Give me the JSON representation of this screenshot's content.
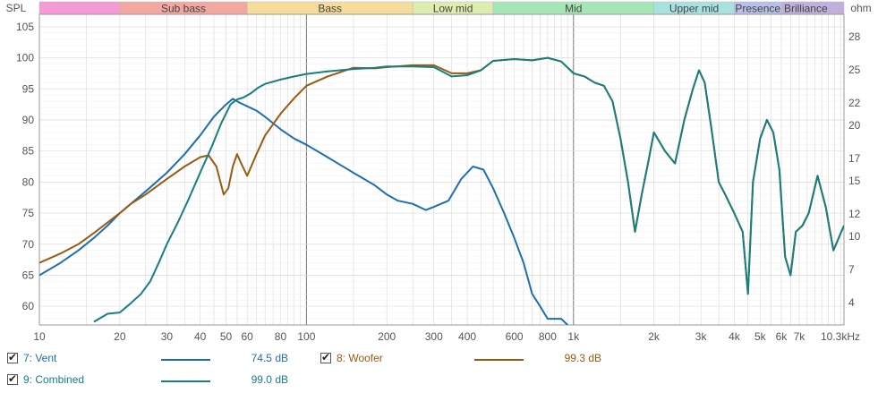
{
  "chart_data": {
    "type": "line",
    "x_scale": "log",
    "xlim": [
      10,
      10300
    ],
    "ylim": [
      57,
      107
    ],
    "y2lim": [
      2,
      30
    ],
    "y_label": "SPL",
    "y2_label": "ohm",
    "x_ticks": [
      {
        "value": 10,
        "label": "10"
      },
      {
        "value": 20,
        "label": "20"
      },
      {
        "value": 30,
        "label": "30"
      },
      {
        "value": 40,
        "label": "40"
      },
      {
        "value": 50,
        "label": "50"
      },
      {
        "value": 60,
        "label": "60"
      },
      {
        "value": 80,
        "label": "80"
      },
      {
        "value": 100,
        "label": "100"
      },
      {
        "value": 200,
        "label": "200"
      },
      {
        "value": 300,
        "label": "300"
      },
      {
        "value": 400,
        "label": "400"
      },
      {
        "value": 600,
        "label": "600"
      },
      {
        "value": 800,
        "label": "800"
      },
      {
        "value": 1000,
        "label": "1k"
      },
      {
        "value": 2000,
        "label": "2k"
      },
      {
        "value": 3000,
        "label": "3k"
      },
      {
        "value": 4000,
        "label": "4k"
      },
      {
        "value": 5000,
        "label": "5k"
      },
      {
        "value": 6000,
        "label": "6k"
      },
      {
        "value": 7000,
        "label": "7k"
      },
      {
        "value": 10300,
        "label": "10.3kHz"
      }
    ],
    "y_ticks": [
      60,
      65,
      70,
      75,
      80,
      85,
      90,
      95,
      100,
      105
    ],
    "y2_ticks": [
      {
        "value": 4,
        "label": "4"
      },
      {
        "value": 7,
        "label": "7"
      },
      {
        "value": 10,
        "label": "10"
      },
      {
        "value": 12,
        "label": "12"
      },
      {
        "value": 15,
        "label": "15"
      },
      {
        "value": 17,
        "label": "17"
      },
      {
        "value": 20,
        "label": "20"
      },
      {
        "value": 22,
        "label": "22"
      },
      {
        "value": 25,
        "label": "25"
      },
      {
        "value": 28,
        "label": "28"
      }
    ],
    "bands": [
      {
        "name": "",
        "from": 10,
        "to": 20,
        "color": "#f49ad4"
      },
      {
        "name": "Sub bass",
        "from": 20,
        "to": 60,
        "color": "#f2a8a0"
      },
      {
        "name": "Bass",
        "from": 60,
        "to": 250,
        "color": "#f6dc9a"
      },
      {
        "name": "Low mid",
        "from": 250,
        "to": 500,
        "color": "#dcedae"
      },
      {
        "name": "Mid",
        "from": 500,
        "to": 2000,
        "color": "#a6e6b6"
      },
      {
        "name": "Upper mid",
        "from": 2000,
        "to": 4000,
        "color": "#a7e2df"
      },
      {
        "name": "Presence",
        "from": 4000,
        "to": 6000,
        "color": "#b8c0e8"
      },
      {
        "name": "Brilliance",
        "from": 6000,
        "to": 10300,
        "color": "#c2b0dc"
      }
    ],
    "series": [
      {
        "name": "7: Vent",
        "value_label": "74.5 dB",
        "color": "#1f6fb0",
        "points": [
          [
            10,
            65
          ],
          [
            12,
            67
          ],
          [
            14,
            69
          ],
          [
            16,
            71
          ],
          [
            18,
            73
          ],
          [
            20,
            75
          ],
          [
            25,
            78.5
          ],
          [
            30,
            81.5
          ],
          [
            35,
            84.5
          ],
          [
            40,
            87.5
          ],
          [
            45,
            90.5
          ],
          [
            50,
            92.5
          ],
          [
            53,
            93.4
          ],
          [
            56,
            92.8
          ],
          [
            60,
            92.2
          ],
          [
            65,
            91.5
          ],
          [
            70,
            90.5
          ],
          [
            80,
            88.5
          ],
          [
            90,
            87
          ],
          [
            100,
            86
          ],
          [
            120,
            84
          ],
          [
            150,
            81.5
          ],
          [
            180,
            79.5
          ],
          [
            200,
            78
          ],
          [
            220,
            77
          ],
          [
            250,
            76.5
          ],
          [
            280,
            75.5
          ],
          [
            300,
            76
          ],
          [
            340,
            77
          ],
          [
            380,
            80.5
          ],
          [
            420,
            82.5
          ],
          [
            460,
            82
          ],
          [
            500,
            79
          ],
          [
            550,
            75
          ],
          [
            600,
            71
          ],
          [
            650,
            67
          ],
          [
            700,
            62
          ],
          [
            750,
            60
          ],
          [
            800,
            58
          ],
          [
            900,
            58
          ],
          [
            950,
            57
          ]
        ]
      },
      {
        "name": "8: Woofer",
        "value_label": "99.3 dB",
        "color": "#9a5a10",
        "points": [
          [
            10,
            67
          ],
          [
            12,
            68.5
          ],
          [
            14,
            70
          ],
          [
            16,
            71.8
          ],
          [
            18,
            73.5
          ],
          [
            20,
            75
          ],
          [
            22,
            76.5
          ],
          [
            25,
            78
          ],
          [
            30,
            80.5
          ],
          [
            35,
            82.5
          ],
          [
            40,
            84
          ],
          [
            43,
            84.3
          ],
          [
            46,
            82.5
          ],
          [
            49,
            78
          ],
          [
            51,
            79
          ],
          [
            53,
            82.5
          ],
          [
            55,
            84.5
          ],
          [
            57,
            83
          ],
          [
            60,
            81
          ],
          [
            65,
            84.5
          ],
          [
            70,
            87.5
          ],
          [
            80,
            91
          ],
          [
            90,
            93.5
          ],
          [
            100,
            95.5
          ],
          [
            120,
            97
          ],
          [
            150,
            98.4
          ],
          [
            180,
            98.3
          ],
          [
            200,
            98.5
          ],
          [
            250,
            98.8
          ],
          [
            300,
            98.8
          ],
          [
            350,
            97.5
          ],
          [
            400,
            97.5
          ],
          [
            450,
            98
          ],
          [
            500,
            99.5
          ],
          [
            600,
            99.8
          ],
          [
            700,
            99.6
          ],
          [
            800,
            100
          ],
          [
            900,
            99.4
          ],
          [
            1000,
            97.5
          ],
          [
            1100,
            97
          ],
          [
            1200,
            96
          ],
          [
            1300,
            95.5
          ],
          [
            1400,
            93
          ],
          [
            1500,
            87
          ],
          [
            1600,
            80
          ],
          [
            1700,
            72
          ],
          [
            1800,
            78
          ],
          [
            1900,
            83
          ],
          [
            2000,
            88
          ],
          [
            2200,
            85
          ],
          [
            2400,
            83
          ],
          [
            2600,
            90
          ],
          [
            2800,
            95
          ],
          [
            2950,
            98
          ],
          [
            3100,
            96
          ],
          [
            3300,
            88
          ],
          [
            3500,
            80
          ],
          [
            3700,
            78
          ],
          [
            4000,
            75
          ],
          [
            4300,
            72
          ],
          [
            4500,
            62
          ],
          [
            4700,
            80
          ],
          [
            5000,
            87
          ],
          [
            5300,
            90
          ],
          [
            5600,
            88
          ],
          [
            5900,
            82
          ],
          [
            6200,
            68
          ],
          [
            6500,
            65
          ],
          [
            6800,
            72
          ],
          [
            7200,
            73
          ],
          [
            7600,
            75
          ],
          [
            8200,
            81
          ],
          [
            8800,
            76
          ],
          [
            9400,
            69
          ],
          [
            10300,
            73
          ]
        ]
      },
      {
        "name": "9: Combined",
        "value_label": "99.0 dB",
        "color": "#177f7f",
        "points": [
          [
            16,
            57.5
          ],
          [
            18,
            58.8
          ],
          [
            20,
            59
          ],
          [
            22,
            60.5
          ],
          [
            24,
            62
          ],
          [
            26,
            64
          ],
          [
            28,
            67
          ],
          [
            30,
            70
          ],
          [
            33,
            73.5
          ],
          [
            36,
            77
          ],
          [
            40,
            81.5
          ],
          [
            44,
            85.5
          ],
          [
            48,
            89.5
          ],
          [
            52,
            92.5
          ],
          [
            55,
            93.3
          ],
          [
            58,
            93.6
          ],
          [
            62,
            94.3
          ],
          [
            66,
            95.2
          ],
          [
            70,
            95.8
          ],
          [
            80,
            96.5
          ],
          [
            90,
            97
          ],
          [
            100,
            97.4
          ],
          [
            120,
            97.8
          ],
          [
            150,
            98.2
          ],
          [
            180,
            98.4
          ],
          [
            200,
            98.6
          ],
          [
            250,
            98.6
          ],
          [
            300,
            98.5
          ],
          [
            350,
            97
          ],
          [
            400,
            97.2
          ],
          [
            450,
            98
          ],
          [
            500,
            99.5
          ],
          [
            600,
            99.8
          ],
          [
            700,
            99.6
          ],
          [
            800,
            100
          ],
          [
            900,
            99.4
          ],
          [
            1000,
            97.5
          ],
          [
            1100,
            97
          ],
          [
            1200,
            96
          ],
          [
            1300,
            95.5
          ],
          [
            1400,
            93
          ],
          [
            1500,
            87
          ],
          [
            1600,
            80
          ],
          [
            1700,
            72
          ],
          [
            1800,
            78
          ],
          [
            1900,
            83
          ],
          [
            2000,
            88
          ],
          [
            2200,
            85
          ],
          [
            2400,
            83
          ],
          [
            2600,
            90
          ],
          [
            2800,
            95
          ],
          [
            2950,
            98
          ],
          [
            3100,
            96
          ],
          [
            3300,
            88
          ],
          [
            3500,
            80
          ],
          [
            3700,
            78
          ],
          [
            4000,
            75
          ],
          [
            4300,
            72
          ],
          [
            4500,
            62
          ],
          [
            4700,
            80
          ],
          [
            5000,
            87
          ],
          [
            5300,
            90
          ],
          [
            5600,
            88
          ],
          [
            5900,
            82
          ],
          [
            6200,
            68
          ],
          [
            6500,
            65
          ],
          [
            6800,
            72
          ],
          [
            7200,
            73
          ],
          [
            7600,
            75
          ],
          [
            8200,
            81
          ],
          [
            8800,
            76
          ],
          [
            9400,
            69
          ],
          [
            10300,
            73
          ]
        ]
      }
    ]
  },
  "legend": [
    {
      "label": "7: Vent",
      "value": "74.5 dB",
      "color": "#1f6fb0",
      "checked": true
    },
    {
      "label": "8: Woofer",
      "value": "99.3 dB",
      "color": "#9a5a10",
      "checked": true
    },
    {
      "label": "9: Combined",
      "value": "99.0 dB",
      "color": "#177f7f",
      "checked": true
    }
  ]
}
